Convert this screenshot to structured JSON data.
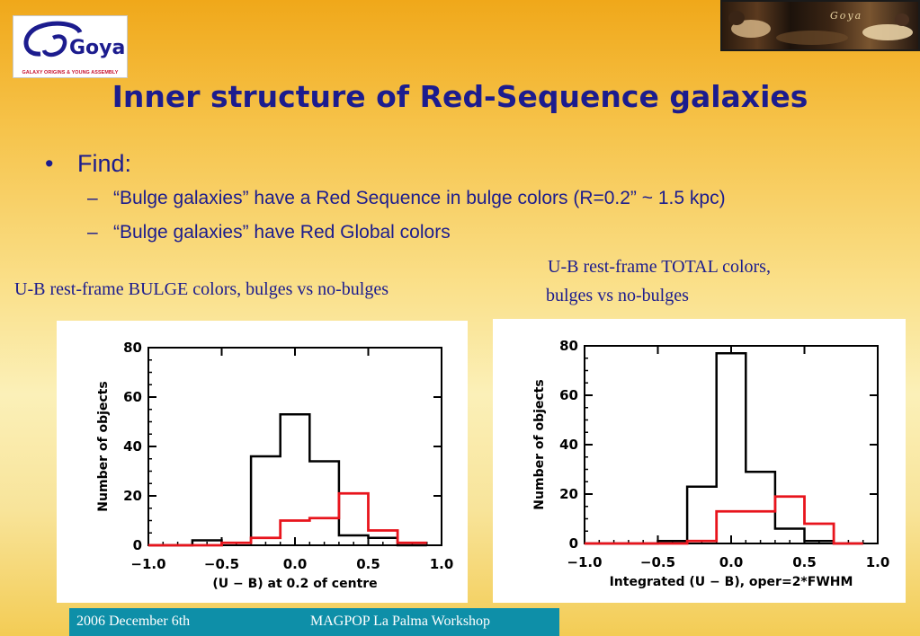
{
  "logo": {
    "name": "Goya",
    "subtitle": "GALAXY ORIGINS & YOUNG ASSEMBLY"
  },
  "painting": {
    "signature": "Goya"
  },
  "title": "Inner structure of Red-Sequence galaxies",
  "bullets": {
    "level1": "Find:",
    "level2": [
      "“Bulge galaxies” have a Red Sequence in bulge colors (R=0.2” ~ 1.5 kpc)",
      "“Bulge galaxies” have Red Global colors"
    ]
  },
  "captions": {
    "left": "U-B  rest-frame BULGE colors, bulges vs no-bulges",
    "right_line1": "U-B  rest-frame TOTAL colors,",
    "right_line2": "bulges vs no-bulges"
  },
  "footer": {
    "date": "2006 December 6th",
    "event": "MAGPOP La Palma Workshop"
  },
  "colors": {
    "title": "#1c1c8e",
    "footer_bg": "#0e8fa8",
    "series_black": "#000000",
    "series_red": "#e8141c"
  },
  "chart_data": [
    {
      "type": "histogram",
      "xlabel": "(U − B) at 0.2 of centre",
      "ylabel": "Number of objects",
      "xlim": [
        -1.0,
        1.0
      ],
      "ylim": [
        0,
        80
      ],
      "xticks": [
        "−1.0",
        "−0.5",
        "0.0",
        "0.5",
        "1.0"
      ],
      "yticks": [
        "0",
        "20",
        "40",
        "60",
        "80"
      ],
      "x_edges": [
        -1.0,
        -0.9,
        -0.7,
        -0.5,
        -0.3,
        -0.1,
        0.1,
        0.3,
        0.5,
        0.7,
        0.9
      ],
      "series": [
        {
          "color": "#000000",
          "values": [
            0,
            0,
            2,
            1,
            36,
            53,
            34,
            4,
            3,
            0
          ]
        },
        {
          "color": "#e8141c",
          "values": [
            0,
            0,
            0,
            1,
            3,
            10,
            11,
            21,
            6,
            1
          ]
        }
      ]
    },
    {
      "type": "histogram",
      "xlabel": "Integrated (U − B), oper=2*FWHM",
      "ylabel": "Number of objects",
      "xlim": [
        -1.0,
        1.0
      ],
      "ylim": [
        0,
        80
      ],
      "xticks": [
        "−1.0",
        "−0.5",
        "0.0",
        "0.5",
        "1.0"
      ],
      "yticks": [
        "0",
        "20",
        "40",
        "60",
        "80"
      ],
      "x_edges": [
        -1.0,
        -0.9,
        -0.7,
        -0.5,
        -0.3,
        -0.1,
        0.1,
        0.3,
        0.5,
        0.7,
        0.9
      ],
      "series": [
        {
          "color": "#000000",
          "values": [
            0,
            0,
            0,
            1,
            23,
            77,
            29,
            6,
            1,
            0
          ]
        },
        {
          "color": "#e8141c",
          "values": [
            0,
            0,
            0,
            0,
            1,
            13,
            13,
            19,
            8,
            0
          ]
        }
      ]
    }
  ]
}
